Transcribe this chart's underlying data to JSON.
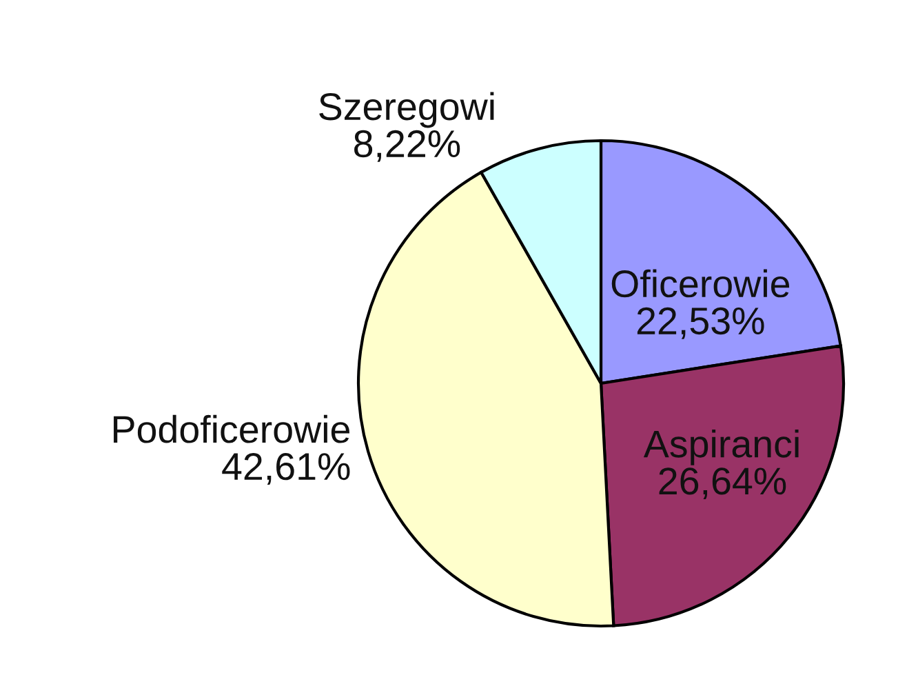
{
  "chart_data": {
    "type": "pie",
    "categories": [
      "Oficerowie",
      "Aspiranci",
      "Podoficerowie",
      "Szeregowi"
    ],
    "values": [
      22.53,
      26.64,
      42.61,
      8.22
    ],
    "value_labels": [
      "22,53%",
      "26,64%",
      "42,61%",
      "8,22%"
    ],
    "colors": [
      "#9999ff",
      "#993366",
      "#ffffcc",
      "#ccffff"
    ],
    "legend": false
  }
}
